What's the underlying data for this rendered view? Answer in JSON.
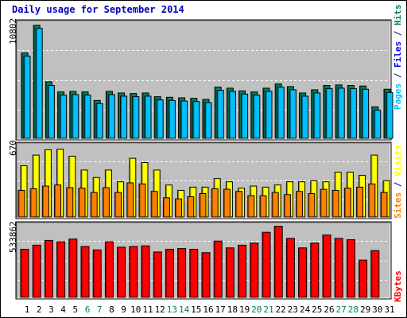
{
  "chart_data": {
    "type": "bar",
    "title": "Daily usage for September 2014",
    "categories": [
      "1",
      "2",
      "3",
      "4",
      "5",
      "6",
      "7",
      "8",
      "9",
      "10",
      "11",
      "12",
      "13",
      "14",
      "15",
      "16",
      "17",
      "18",
      "19",
      "20",
      "21",
      "22",
      "23",
      "24",
      "25",
      "26",
      "27",
      "28",
      "29",
      "30",
      "31"
    ],
    "weekend_days": [
      6,
      7,
      13,
      14,
      20,
      21,
      27,
      28
    ],
    "panels": [
      {
        "name": "pages-files-hits",
        "max_label": "10802",
        "ymax": 10802,
        "series": [
          {
            "name": "Hits",
            "color": "#00805c",
            "values": [
              8000,
              10600,
              5300,
              4350,
              4400,
              4350,
              3550,
              4400,
              4250,
              4200,
              4250,
              3900,
              3850,
              3800,
              3750,
              3650,
              4800,
              4700,
              4450,
              4350,
              4700,
              5100,
              4850,
              4250,
              4550,
              4950,
              5000,
              4950,
              4900,
              2950,
              4600
            ]
          },
          {
            "name": "Files",
            "color": "#0000ff",
            "values": [
              7700,
              10300,
              4950,
              4050,
              4100,
              4050,
              3250,
              4100,
              3950,
              3900,
              3950,
              3600,
              3550,
              3500,
              3450,
              3350,
              4500,
              4400,
              4150,
              4050,
              4400,
              4800,
              4550,
              3950,
              4250,
              4650,
              4700,
              4650,
              4600,
              2650,
              4300
            ]
          },
          {
            "name": "Pages",
            "color": "#00c0ff",
            "values": [
              7700,
              10300,
              4950,
              4050,
              4100,
              4050,
              3250,
              4100,
              3950,
              3900,
              3950,
              3600,
              3550,
              3500,
              3450,
              3350,
              4500,
              4400,
              4150,
              4050,
              4400,
              4800,
              4550,
              3950,
              4250,
              4650,
              4700,
              4650,
              4600,
              2650,
              4300
            ]
          }
        ],
        "legend": [
          {
            "text": "Pages",
            "color": "#00c0ff"
          },
          {
            "text": " / ",
            "color": "#000080"
          },
          {
            "text": "Files",
            "color": "#0000ff"
          },
          {
            "text": " / ",
            "color": "#000080"
          },
          {
            "text": "Hits",
            "color": "#00805c"
          }
        ]
      },
      {
        "name": "sites-visits",
        "max_label": "670",
        "ymax": 670,
        "series": [
          {
            "name": "Visits",
            "color": "#ffff00",
            "values": [
              480,
              580,
              630,
              635,
              570,
              440,
              370,
              440,
              330,
              550,
              510,
              440,
              300,
              250,
              280,
              280,
              360,
              330,
              270,
              290,
              280,
              300,
              330,
              330,
              340,
              330,
              420,
              420,
              390,
              580,
              340
            ]
          },
          {
            "name": "Sites",
            "color": "#ff8000",
            "values": [
              250,
              265,
              290,
              300,
              275,
              270,
              230,
              275,
              230,
              320,
              310,
              240,
              180,
              170,
              190,
              220,
              265,
              260,
              240,
              200,
              200,
              230,
              210,
              240,
              220,
              260,
              250,
              270,
              280,
              310,
              230
            ]
          }
        ],
        "legend": [
          {
            "text": "Sites",
            "color": "#ff8000"
          },
          {
            "text": " / ",
            "color": "#000080"
          },
          {
            "text": "Visits",
            "color": "#ffff00"
          }
        ]
      },
      {
        "name": "kbytes",
        "max_label": "533862",
        "ymax": 533862,
        "series": [
          {
            "name": "KBytes",
            "color": "#ff0000",
            "values": [
              355000,
              385000,
              420000,
              410000,
              430000,
              375000,
              350000,
              410000,
              370000,
              375000,
              380000,
              335000,
              355000,
              360000,
              355000,
              330000,
              415000,
              365000,
              385000,
              400000,
              480000,
              525000,
              435000,
              365000,
              400000,
              460000,
              435000,
              425000,
              275000,
              345000,
              0
            ]
          }
        ],
        "legend": [
          {
            "text": "KBytes",
            "color": "#ff0000"
          }
        ]
      }
    ]
  }
}
